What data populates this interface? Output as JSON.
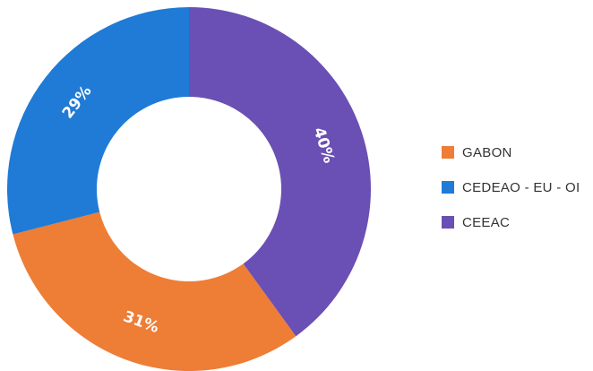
{
  "chart_data": {
    "type": "pie",
    "title": "",
    "legend_position": "right",
    "donut": true,
    "slices": [
      {
        "label": "CEEAC",
        "value": 40,
        "display": "40%",
        "color": "#6a4fb4"
      },
      {
        "label": "GABON",
        "value": 31,
        "display": "31%",
        "color": "#ee7d36"
      },
      {
        "label": "CEDEAO - EU - OI",
        "value": 29,
        "display": "29%",
        "color": "#1f7bd6"
      }
    ],
    "legend": [
      {
        "label": "GABON",
        "color": "#ee7d36"
      },
      {
        "label": "CEDEAO - EU - OI",
        "color": "#1f7bd6"
      },
      {
        "label": "CEEAC",
        "color": "#6a4fb4"
      }
    ]
  }
}
